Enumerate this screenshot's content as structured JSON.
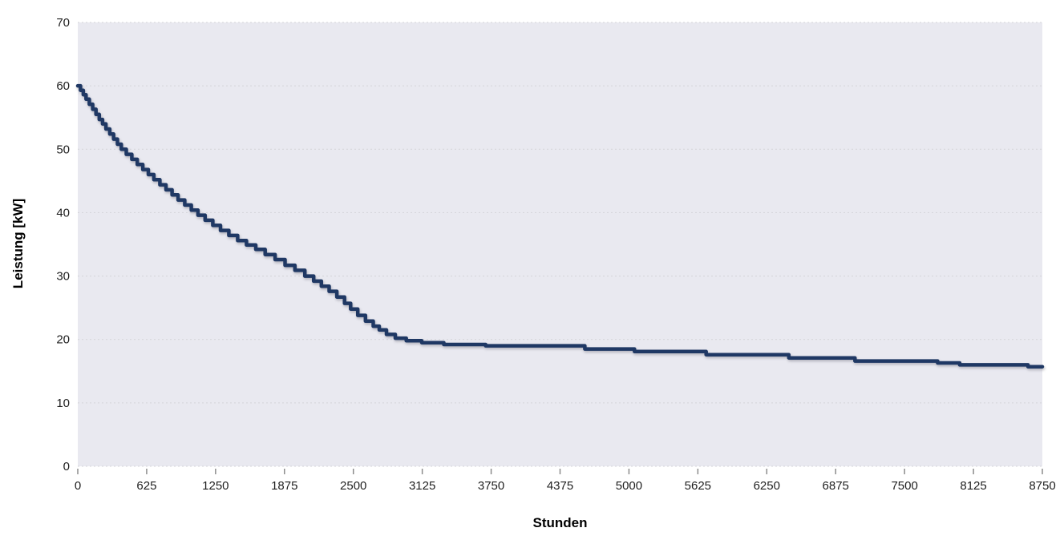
{
  "chart_data": {
    "type": "line",
    "subtype": "step-after",
    "title": "",
    "xlabel": "Stunden",
    "ylabel": "Leistung [kW]",
    "xlim": [
      0,
      8750
    ],
    "ylim": [
      0,
      70
    ],
    "x_ticks": [
      0,
      625,
      1250,
      1875,
      2500,
      3125,
      3750,
      4375,
      5000,
      5625,
      6250,
      6875,
      7500,
      8125,
      8750
    ],
    "y_ticks": [
      0,
      10,
      20,
      30,
      40,
      50,
      60,
      70
    ],
    "grid": "horizontal-dashed",
    "legend": "none",
    "colors": {
      "line": "#1f3864",
      "plot_background": "#e9e9f0",
      "gridline": "#d4d4d8",
      "tick_text": "#1f1f1f",
      "tick_mark": "#8c8c8c",
      "axis_title": "#000000",
      "outer_background": "#ffffff"
    },
    "series": [
      {
        "name": "Leistung",
        "points": [
          [
            0,
            60
          ],
          [
            25,
            59.3
          ],
          [
            50,
            58.6
          ],
          [
            75,
            57.9
          ],
          [
            105,
            57.1
          ],
          [
            135,
            56.3
          ],
          [
            165,
            55.5
          ],
          [
            195,
            54.7
          ],
          [
            225,
            54.0
          ],
          [
            255,
            53.2
          ],
          [
            290,
            52.4
          ],
          [
            325,
            51.6
          ],
          [
            360,
            50.8
          ],
          [
            395,
            50.0
          ],
          [
            440,
            49.2
          ],
          [
            490,
            48.4
          ],
          [
            540,
            47.6
          ],
          [
            590,
            46.8
          ],
          [
            640,
            46.0
          ],
          [
            690,
            45.2
          ],
          [
            745,
            44.4
          ],
          [
            800,
            43.6
          ],
          [
            855,
            42.8
          ],
          [
            910,
            42.0
          ],
          [
            970,
            41.2
          ],
          [
            1030,
            40.4
          ],
          [
            1090,
            39.6
          ],
          [
            1155,
            38.8
          ],
          [
            1225,
            38.0
          ],
          [
            1295,
            37.2
          ],
          [
            1370,
            36.4
          ],
          [
            1450,
            35.6
          ],
          [
            1530,
            34.9
          ],
          [
            1615,
            34.2
          ],
          [
            1700,
            33.4
          ],
          [
            1790,
            32.6
          ],
          [
            1880,
            31.7
          ],
          [
            1970,
            30.9
          ],
          [
            2060,
            30.0
          ],
          [
            2140,
            29.2
          ],
          [
            2210,
            28.4
          ],
          [
            2280,
            27.6
          ],
          [
            2350,
            26.7
          ],
          [
            2420,
            25.7
          ],
          [
            2475,
            24.8
          ],
          [
            2540,
            23.8
          ],
          [
            2610,
            22.9
          ],
          [
            2680,
            22.1
          ],
          [
            2735,
            21.5
          ],
          [
            2800,
            20.8
          ],
          [
            2880,
            20.2
          ],
          [
            2980,
            19.8
          ],
          [
            3120,
            19.5
          ],
          [
            3320,
            19.2
          ],
          [
            3700,
            19.0
          ],
          [
            4600,
            18.5
          ],
          [
            5050,
            18.1
          ],
          [
            5700,
            17.6
          ],
          [
            6450,
            17.1
          ],
          [
            7050,
            16.6
          ],
          [
            7800,
            16.3
          ],
          [
            8000,
            16.0
          ],
          [
            8620,
            15.7
          ],
          [
            8750,
            15.7
          ]
        ]
      }
    ]
  },
  "layout_note": ""
}
